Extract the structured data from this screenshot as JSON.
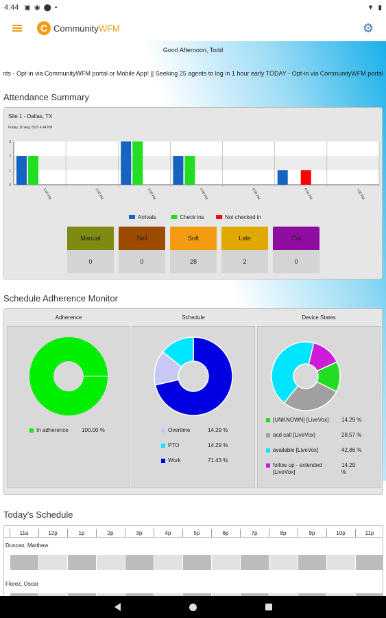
{
  "statusbar": {
    "time": "4:44"
  },
  "appbar": {
    "brand_main": "Community",
    "brand_accent": "WFM",
    "logo_letter": "C"
  },
  "greeting": "Good Afternoon, Todd",
  "ticker": "nts  -  Opt-in via CommunityWFM portal or Mobile App!   ||   Seeking 25 agents to log in 1 hour early TODAY  -  Opt-in via CommunityWFM portal",
  "attendance": {
    "title": "Attendance Summary",
    "site": "Site 1 - Dallas, TX",
    "date": "Friday, 26 Aug 2022 4:44 PM",
    "tiles": [
      {
        "label": "Manual",
        "value": "0",
        "color": "#7e8a10"
      },
      {
        "label": "Sell",
        "value": "0",
        "color": "#9c4a00"
      },
      {
        "label": "Soft",
        "value": "28",
        "color": "#f39c12"
      },
      {
        "label": "Late",
        "value": "2",
        "color": "#e0a800"
      },
      {
        "label": "Out",
        "value": "0",
        "color": "#8e0da0"
      }
    ]
  },
  "chart_data": {
    "type": "bar",
    "categories": [
      "1:00 PM",
      "2:00 PM",
      "3:00 PM",
      "4:00 PM",
      "5:00 PM",
      "6:00 PM",
      "7:00 PM"
    ],
    "series": [
      {
        "name": "Arrivals",
        "values": [
          2,
          0,
          3,
          2,
          0,
          1,
          0
        ],
        "color": "#1565c0"
      },
      {
        "name": "Check ins",
        "values": [
          2,
          0,
          3,
          2,
          0,
          0,
          0
        ],
        "color": "#22dd22"
      },
      {
        "name": "Not checked in",
        "values": [
          0,
          0,
          0,
          0,
          0,
          1,
          0
        ],
        "color": "#ff0000"
      }
    ],
    "yticks": [
      "0",
      "1",
      "2",
      "3"
    ],
    "ylim": [
      0,
      3
    ],
    "legend_position": "bottom"
  },
  "adherence": {
    "title": "Schedule Adherence Monitor",
    "columns": [
      {
        "title": "Adherence",
        "slices": [
          {
            "label": "In adherence",
            "pct": "100.00 %",
            "value": 100,
            "color": "#00ee00"
          }
        ]
      },
      {
        "title": "Schedule",
        "slices": [
          {
            "label": "Overtime",
            "pct": "14.29 %",
            "value": 14.29,
            "color": "#c8c8f4"
          },
          {
            "label": "PTO",
            "pct": "14.29 %",
            "value": 14.29,
            "color": "#00e5ff"
          },
          {
            "label": "Work",
            "pct": "71.43 %",
            "value": 71.43,
            "color": "#0000e0"
          }
        ]
      },
      {
        "title": "Device States",
        "slices": [
          {
            "label": "[UNKNOWN] [LiveVox]",
            "pct": "14.29 %",
            "value": 14.29,
            "color": "#22dd22"
          },
          {
            "label": "acd call [LiveVox]",
            "pct": "28.57 %",
            "value": 28.57,
            "color": "#a0a0a0"
          },
          {
            "label": "available [LiveVox]",
            "pct": "42.86 %",
            "value": 42.86,
            "color": "#00e5ff"
          },
          {
            "label": "follow up - extended [LiveVox]",
            "pct": "14.29 %",
            "value": 14.29,
            "color": "#d01adc"
          }
        ]
      }
    ]
  },
  "schedule": {
    "title": "Today's Schedule",
    "hours": [
      "11a",
      "12p",
      "1p",
      "2p",
      "3p",
      "4p",
      "5p",
      "6p",
      "7p",
      "8p",
      "9p",
      "10p",
      "11p"
    ],
    "agents": [
      {
        "name": "Duncan, Matthew"
      },
      {
        "name": "Florez, Oscar"
      }
    ]
  }
}
